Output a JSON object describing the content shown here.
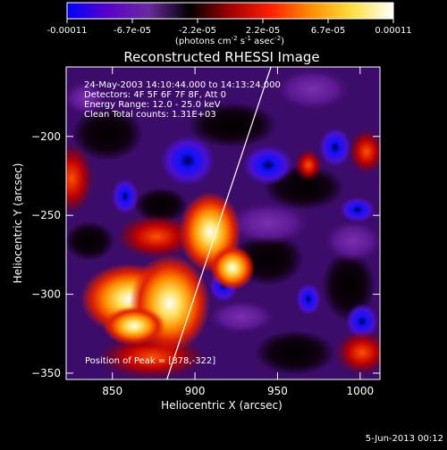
{
  "colorbar": {
    "ticks": [
      "-0.00011",
      "-6.7e-05",
      "-2.2e-05",
      "2.2e-05",
      "6.7e-05",
      "0.00011"
    ],
    "unit_main": "(photons cm",
    "unit_sup1": "-2",
    "unit_mid": " s",
    "unit_sup2": "-1",
    "unit_mid2": " asec",
    "unit_sup3": "-2",
    "unit_end": ")",
    "colors": [
      "#0000ff",
      "#5a00c8",
      "#6a2aa0",
      "#000000",
      "#a00000",
      "#ff2000",
      "#ff9000",
      "#ffe040",
      "#ffffff"
    ]
  },
  "chart_data": {
    "type": "heatmap",
    "title": "Reconstructed RHESSI Image",
    "xlabel": "Heliocentric X (arcsec)",
    "ylabel": "Heliocentric Y (arcsec)",
    "xlim": [
      822,
      1012
    ],
    "ylim": [
      -354,
      -156
    ],
    "xticks": [
      850,
      900,
      950,
      1000
    ],
    "yticks": [
      -200,
      -250,
      -300,
      -350
    ],
    "annotations": [
      "24-May-2003 14:10:44.000 to 14:13:24.000",
      "Detectors: 4F 5F 6F 7F 8F, Att 0",
      "Energy Range: 12.0 - 25.0 keV",
      "Clean    Total counts: 1.31E+03"
    ],
    "peak_label": "Position of Peak = [878,-322]",
    "peak": [
      878,
      -322
    ],
    "limb_line": [
      [
        883,
        -354
      ],
      [
        946,
        -156
      ]
    ]
  },
  "footer": {
    "date": "5-Jun-2013 00:12"
  }
}
